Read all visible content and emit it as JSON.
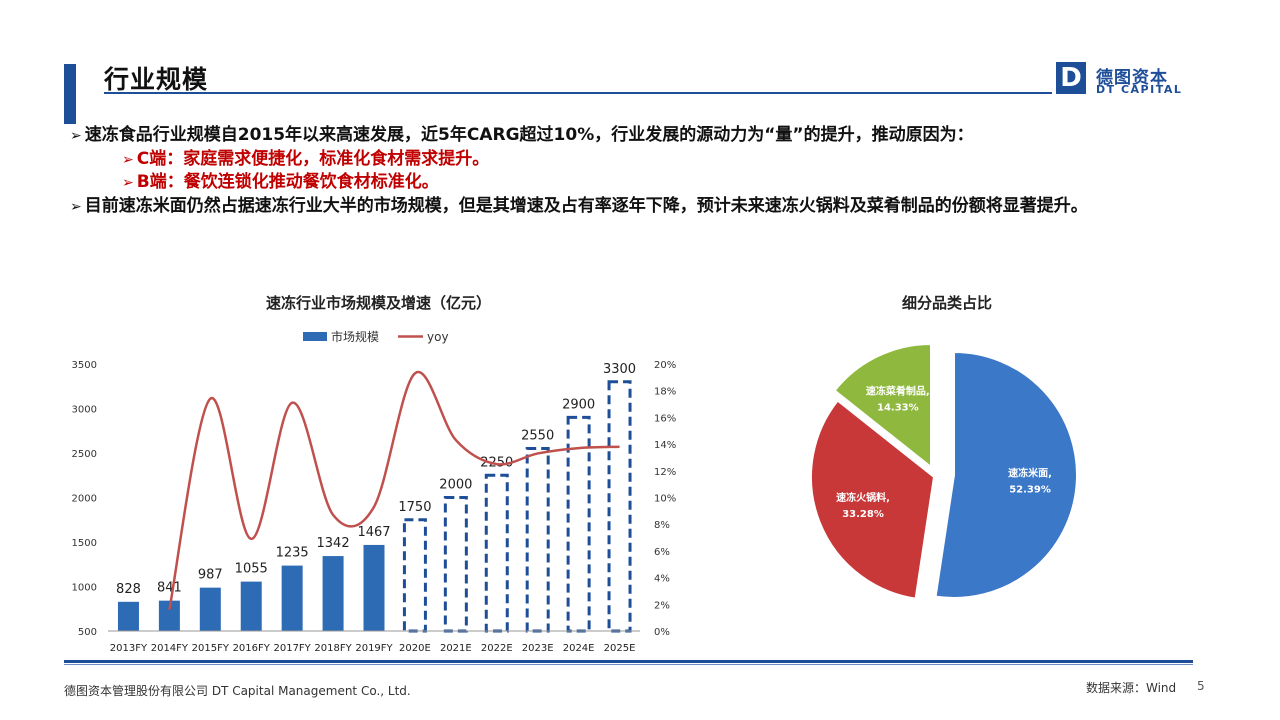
{
  "header": {
    "title": "行业规模",
    "logo_cn": "德图资本",
    "logo_en": "DT CAPITAL",
    "logo_mark": "D",
    "accent_color": "#1f4e99"
  },
  "bullets": [
    {
      "text": "速冻食品行业规模自2015年以来高速发展，近5年CARG超过10%，行业发展的源动力为“量”的提升，推动原因为：",
      "level": 1
    },
    {
      "text": "C端：家庭需求便捷化，标准化食材需求提升。",
      "level": 2,
      "color": "#c00000"
    },
    {
      "text": "B端：餐饮连锁化推动餐饮食材标准化。",
      "level": 2,
      "color": "#c00000"
    },
    {
      "text": "目前速冻米面仍然占据速冻行业大半的市场规模，但是其增速及占有率逐年下降，预计未来速冻火锅料及菜肴制品的份额将显著提升。",
      "level": 1
    }
  ],
  "bullet_marker": "➢",
  "chart_data": [
    {
      "type": "bar",
      "title": "速冻行业市场规模及增速（亿元）",
      "categories": [
        "2013FY",
        "2014FY",
        "2015FY",
        "2016FY",
        "2017FY",
        "2018FY",
        "2019FY",
        "2020E",
        "2021E",
        "2022E",
        "2023E",
        "2024E",
        "2025E"
      ],
      "series": [
        {
          "name": "市场规模",
          "type": "bar",
          "axis": "left",
          "values": [
            828,
            841,
            987,
            1055,
            1235,
            1342,
            1467,
            1750,
            2000,
            2250,
            2550,
            2900,
            3300
          ],
          "forecast_from_index": 7,
          "color": "#2e6bb5"
        },
        {
          "name": "yoy",
          "type": "line",
          "axis": "right",
          "values": [
            null,
            1.6,
            17.4,
            6.9,
            17.1,
            8.7,
            9.3,
            19.3,
            14.3,
            12.5,
            13.3,
            13.7,
            13.8
          ],
          "color": "#c0504d"
        }
      ],
      "left_axis": {
        "min": 500,
        "max": 3500,
        "ticks": [
          500,
          1000,
          1500,
          2000,
          2500,
          3000,
          3500
        ]
      },
      "right_axis": {
        "min": 0,
        "max": 20,
        "ticks": [
          "0%",
          "2%",
          "4%",
          "6%",
          "8%",
          "10%",
          "12%",
          "14%",
          "16%",
          "18%",
          "20%"
        ]
      },
      "legend_position": "top-center",
      "grid": false
    },
    {
      "type": "pie",
      "title": "细分品类占比",
      "slices": [
        {
          "label": "速冻米面,",
          "value": 52.39,
          "display": "52.39%",
          "color": "#3c78c8"
        },
        {
          "label": "速冻火锅料,",
          "value": 33.28,
          "display": "33.28%",
          "color": "#c83838"
        },
        {
          "label": "速冻菜肴制品,",
          "value": 14.33,
          "display": "14.33%",
          "color": "#8fb83e"
        }
      ]
    }
  ],
  "footer": {
    "company": "德图资本管理股份有限公司 DT Capital Management Co., Ltd.",
    "source": "数据来源：Wind",
    "page": "5"
  }
}
